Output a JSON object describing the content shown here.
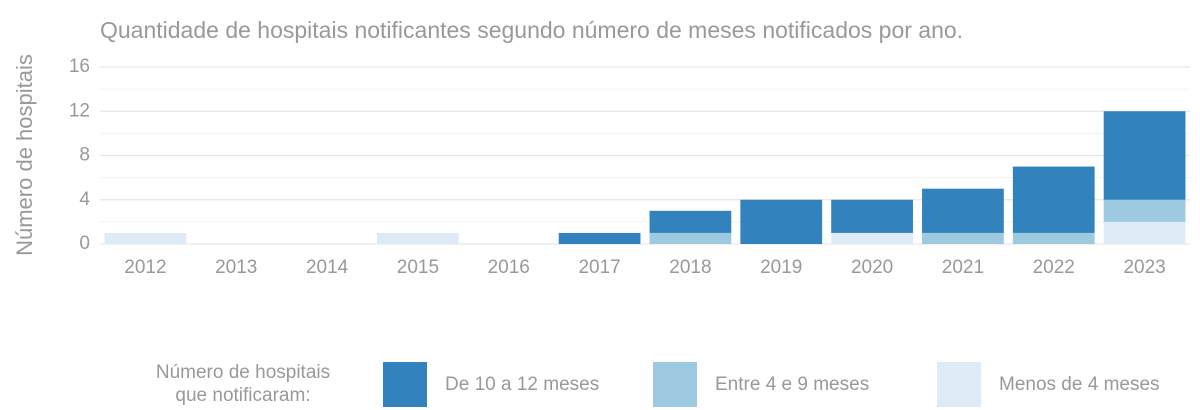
{
  "chart_data": {
    "type": "stacked_bar",
    "title": "Quantidade de hospitais notificantes segundo número de meses notificados por ano.",
    "y_label": "Número de hospitais",
    "categories": [
      "2012",
      "2013",
      "2014",
      "2015",
      "2016",
      "2017",
      "2018",
      "2019",
      "2020",
      "2021",
      "2022",
      "2023"
    ],
    "series": [
      {
        "name": "De 10 a 12 meses",
        "color": "#3182bd",
        "values": [
          0,
          0,
          0,
          0,
          0,
          1,
          2,
          4,
          3,
          4,
          6,
          8
        ]
      },
      {
        "name": "Entre 4 e 9 meses",
        "color": "#9ecae1",
        "values": [
          0,
          0,
          0,
          0,
          0,
          0,
          1,
          0,
          0,
          1,
          1,
          2
        ]
      },
      {
        "name": "Menos de 4 meses",
        "color": "#deebf7",
        "values": [
          1,
          0,
          0,
          1,
          0,
          0,
          0,
          0,
          1,
          0,
          0,
          2
        ]
      }
    ],
    "ylim": [
      0,
      16
    ],
    "yticks": [
      0,
      4,
      8,
      12,
      16
    ],
    "minor_yticks": [
      2,
      6,
      10,
      14
    ],
    "grid": true,
    "legend_title": [
      "Número de hospitais",
      "que notificaram:"
    ],
    "legend_position": "bottom"
  }
}
